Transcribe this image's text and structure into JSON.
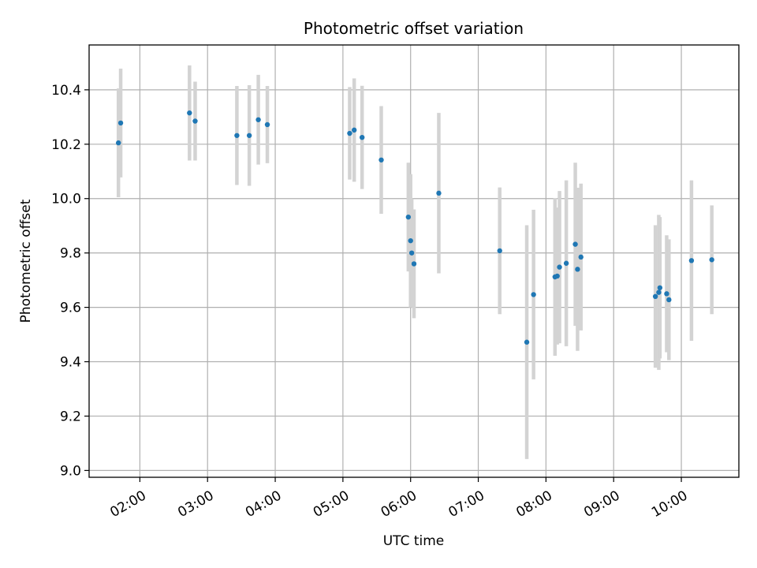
{
  "chart_data": {
    "type": "scatter",
    "title": "Photometric offset variation",
    "xlabel": "UTC time",
    "ylabel": "Photometric offset",
    "x_ticks": [
      "02:00",
      "03:00",
      "04:00",
      "05:00",
      "06:00",
      "07:00",
      "08:00",
      "09:00",
      "10:00"
    ],
    "y_ticks": [
      "9.0",
      "9.2",
      "9.4",
      "9.6",
      "9.8",
      "10.0",
      "10.2",
      "10.4"
    ],
    "xlim": [
      "01:15",
      "10:51"
    ],
    "ylim": [
      8.975,
      10.565
    ],
    "grid": true,
    "colors": {
      "point": "#1f77b4",
      "errorbar": "#d3d3d3",
      "grid": "#b0b0b0"
    },
    "series": [
      {
        "points": [
          {
            "x": "01:41",
            "y": 10.205,
            "err": 0.2
          },
          {
            "x": "01:43",
            "y": 10.278,
            "err": 0.2
          },
          {
            "x": "02:44",
            "y": 10.315,
            "err": 0.175
          },
          {
            "x": "02:49",
            "y": 10.285,
            "err": 0.145
          },
          {
            "x": "03:26",
            "y": 10.232,
            "err": 0.182
          },
          {
            "x": "03:37",
            "y": 10.232,
            "err": 0.185
          },
          {
            "x": "03:45",
            "y": 10.29,
            "err": 0.165
          },
          {
            "x": "03:53",
            "y": 10.272,
            "err": 0.142
          },
          {
            "x": "05:06",
            "y": 10.24,
            "err": 0.17
          },
          {
            "x": "05:10",
            "y": 10.252,
            "err": 0.19
          },
          {
            "x": "05:17",
            "y": 10.225,
            "err": 0.19
          },
          {
            "x": "05:34",
            "y": 10.142,
            "err": 0.198
          },
          {
            "x": "05:58",
            "y": 9.932,
            "err": 0.2
          },
          {
            "x": "06:00",
            "y": 9.845,
            "err": 0.245
          },
          {
            "x": "06:01",
            "y": 9.8,
            "err": 0.2
          },
          {
            "x": "06:03",
            "y": 9.76,
            "err": 0.2
          },
          {
            "x": "06:25",
            "y": 10.02,
            "err": 0.295
          },
          {
            "x": "07:19",
            "y": 9.808,
            "err": 0.233
          },
          {
            "x": "07:43",
            "y": 9.472,
            "err": 0.43
          },
          {
            "x": "07:49",
            "y": 9.647,
            "err": 0.312
          },
          {
            "x": "08:08",
            "y": 9.712,
            "err": 0.29
          },
          {
            "x": "08:10",
            "y": 9.715,
            "err": 0.252
          },
          {
            "x": "08:12",
            "y": 9.748,
            "err": 0.28
          },
          {
            "x": "08:18",
            "y": 9.762,
            "err": 0.305
          },
          {
            "x": "08:26",
            "y": 9.832,
            "err": 0.3
          },
          {
            "x": "08:28",
            "y": 9.74,
            "err": 0.3
          },
          {
            "x": "08:31",
            "y": 9.785,
            "err": 0.27
          },
          {
            "x": "09:37",
            "y": 9.64,
            "err": 0.262
          },
          {
            "x": "09:40",
            "y": 9.655,
            "err": 0.285
          },
          {
            "x": "09:41",
            "y": 9.672,
            "err": 0.26
          },
          {
            "x": "09:47",
            "y": 9.65,
            "err": 0.215
          },
          {
            "x": "09:49",
            "y": 9.628,
            "err": 0.222
          },
          {
            "x": "10:09",
            "y": 9.772,
            "err": 0.295
          },
          {
            "x": "10:27",
            "y": 9.775,
            "err": 0.2
          }
        ]
      }
    ]
  }
}
